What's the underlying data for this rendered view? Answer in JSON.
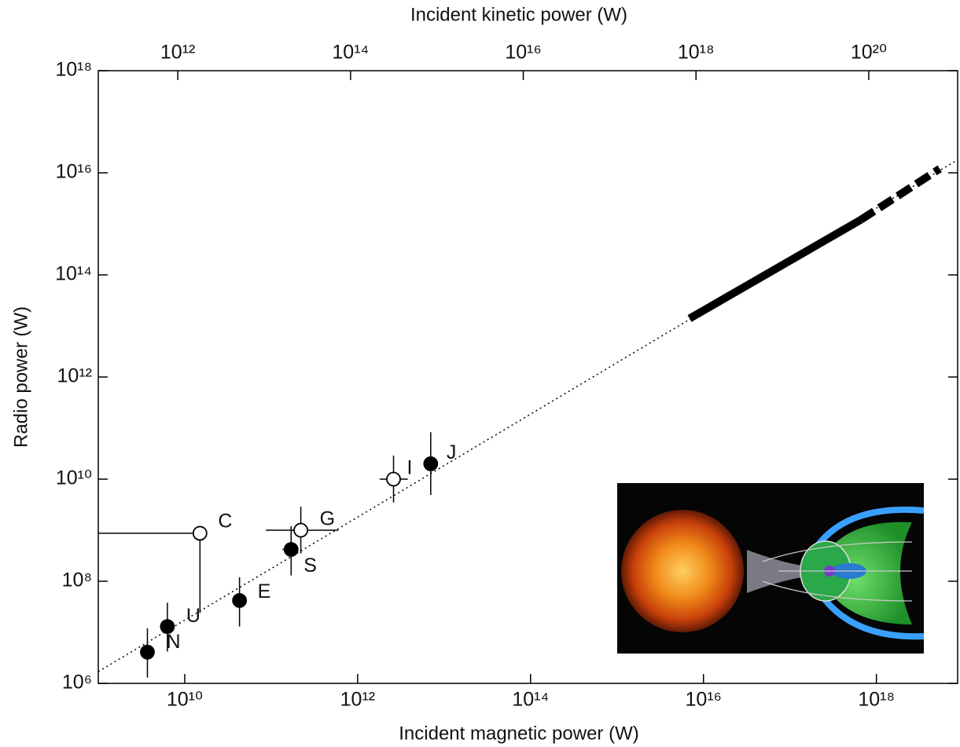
{
  "chart_data": {
    "type": "scatter",
    "log": true,
    "xlabel": "Incident magnetic power (W)",
    "x2label": "Incident kinetic power (W)",
    "ylabel": "Radio power (W)",
    "xlim": [
      1000000000.0,
      8.7e+18
    ],
    "xticks": [
      {
        "value": 10000000000.0,
        "label": "10¹⁰"
      },
      {
        "value": 1000000000000.0,
        "label": "10¹²"
      },
      {
        "value": 100000000000000.0,
        "label": "10¹⁴"
      },
      {
        "value": 1e+16,
        "label": "10¹⁶"
      },
      {
        "value": 1e+18,
        "label": "10¹⁸"
      }
    ],
    "x2lim": [
      120000000000.0,
      1.07e+21
    ],
    "x2ticks": [
      {
        "value": 1000000000000.0,
        "label": "10¹²"
      },
      {
        "value": 100000000000000.0,
        "label": "10¹⁴"
      },
      {
        "value": 1e+16,
        "label": "10¹⁶"
      },
      {
        "value": 1e+18,
        "label": "10¹⁸"
      },
      {
        "value": 1e+20,
        "label": "10²⁰"
      }
    ],
    "ylim": [
      1000000.0,
      1e+18
    ],
    "yticks": [
      {
        "value": 1000000.0,
        "label": "10⁶"
      },
      {
        "value": 100000000.0,
        "label": "10⁸"
      },
      {
        "value": 10000000000.0,
        "label": "10¹⁰"
      },
      {
        "value": 1000000000000.0,
        "label": "10¹²"
      },
      {
        "value": 100000000000000.0,
        "label": "10¹⁴"
      },
      {
        "value": 1e+16,
        "label": "10¹⁶"
      },
      {
        "value": 1e+18,
        "label": "10¹⁸"
      }
    ],
    "color": "#000000",
    "series": [
      {
        "name": "N",
        "filled": true,
        "x": [
          3700000000.0
        ],
        "values": [
          4100000.0
        ],
        "y_low": [
          1300000.0
        ],
        "y_high": [
          12000000.0
        ]
      },
      {
        "name": "U",
        "filled": true,
        "x": [
          6300000000.0
        ],
        "values": [
          13000000.0
        ],
        "y_low": [
          4200000.0
        ],
        "y_high": [
          38000000.0
        ]
      },
      {
        "name": "E",
        "filled": true,
        "x": [
          43000000000.0
        ],
        "values": [
          42000000.0
        ],
        "y_low": [
          13000000.0
        ],
        "y_high": [
          120000000.0
        ]
      },
      {
        "name": "S",
        "filled": true,
        "x": [
          170000000000.0
        ],
        "values": [
          420000000.0
        ],
        "y_low": [
          130000000.0
        ],
        "y_high": [
          1200000000.0
        ],
        "x_low": [
          135000000000.0
        ],
        "x_high": [
          200000000000.0
        ]
      },
      {
        "name": "G",
        "filled": false,
        "x": [
          220000000000.0
        ],
        "values": [
          1000000000.0
        ],
        "y_low": [
          350000000.0
        ],
        "y_high": [
          2900000000.0
        ],
        "x_low": [
          87000000000.0
        ],
        "x_high": [
          600000000000.0
        ]
      },
      {
        "name": "C",
        "filled": false,
        "x": [
          15000000000.0
        ],
        "values": [
          870000000.0
        ],
        "y_low": [
          24000000.0
        ],
        "x_low": [
          1000000000.0
        ]
      },
      {
        "name": "I",
        "filled": false,
        "x": [
          2600000000000.0
        ],
        "values": [
          10000000000.0
        ],
        "y_low": [
          3500000000.0
        ],
        "y_high": [
          29000000000.0
        ],
        "x_low": [
          1800000000000.0
        ],
        "x_high": [
          3800000000000.0
        ]
      },
      {
        "name": "J",
        "filled": true,
        "x": [
          7000000000000.0
        ],
        "values": [
          20000000000.0
        ],
        "y_low": [
          4900000000.0
        ],
        "y_high": [
          83000000000.0
        ]
      }
    ],
    "lines": [
      {
        "style": "dotted",
        "x": [
          1000000000.0,
          8.7e+18
        ],
        "values": [
          1700000.0,
          1.8e+16
        ]
      },
      {
        "style": "solid",
        "x": [
          6900000000000000.0,
          6.6e+17
        ],
        "values": [
          14000000000000.0,
          1200000000000000.0
        ]
      },
      {
        "style": "dashed",
        "x": [
          6.6e+17,
          5.4e+18
        ],
        "values": [
          1200000000000000.0,
          1.2e+16
        ]
      }
    ]
  }
}
